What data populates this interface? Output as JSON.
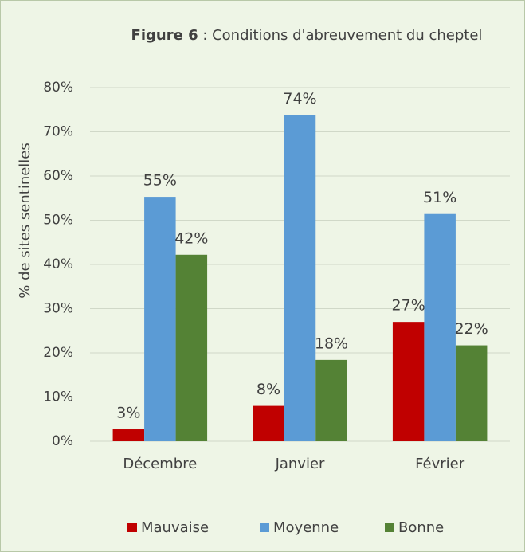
{
  "chart_data": {
    "type": "bar",
    "title": [
      "Figure 6",
      " : Conditions d'abreuvement du cheptel"
    ],
    "ylabel": "% de sites sentinelles",
    "categories": [
      "Décembre",
      "Janvier",
      "Février"
    ],
    "series": [
      {
        "name": "Mauvaise",
        "color": "#c00000",
        "values": [
          2.7,
          8,
          27
        ],
        "value_labels": [
          "3%",
          "8%",
          "27%"
        ]
      },
      {
        "name": "Moyenne",
        "color": "#5b9bd5",
        "values": [
          55.3,
          73.8,
          51.4
        ],
        "value_labels": [
          "55%",
          "74%",
          "51%"
        ]
      },
      {
        "name": "Bonne",
        "color": "#548235",
        "values": [
          42.2,
          18.4,
          21.7
        ],
        "value_labels": [
          "42%",
          "18%",
          "22%"
        ]
      }
    ],
    "ylim": [
      0,
      80
    ],
    "yticks": [
      {
        "value": 0,
        "label": "0%"
      },
      {
        "value": 10,
        "label": "10%"
      },
      {
        "value": 20,
        "label": "20%"
      },
      {
        "value": 30,
        "label": "30%"
      },
      {
        "value": 40,
        "label": "40%"
      },
      {
        "value": 50,
        "label": "50%"
      },
      {
        "value": 60,
        "label": "60%"
      },
      {
        "value": 70,
        "label": "70%"
      },
      {
        "value": 80,
        "label": "80%"
      }
    ],
    "grid": true,
    "legend": "bottom"
  }
}
